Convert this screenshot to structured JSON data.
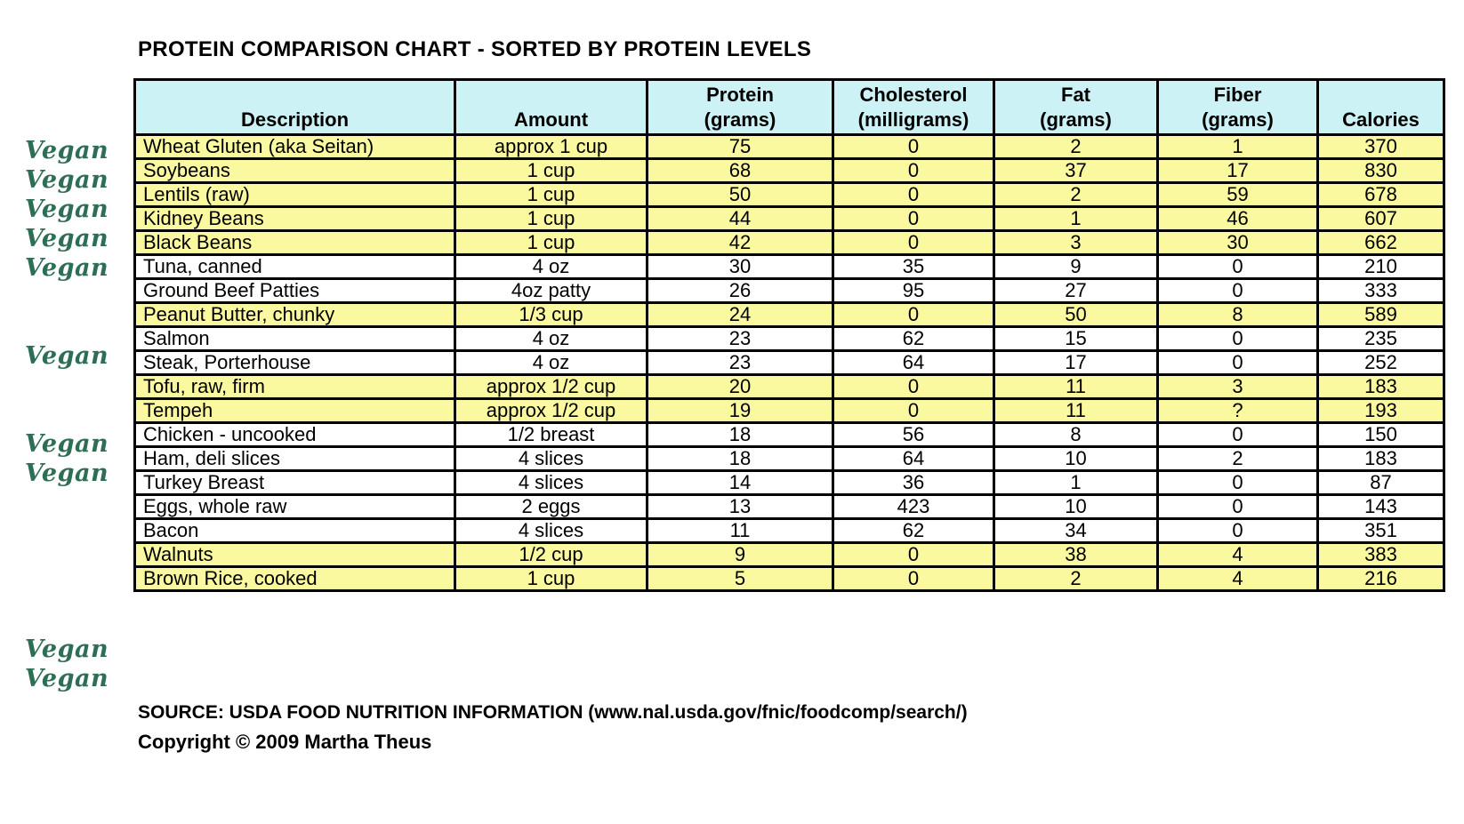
{
  "title": "PROTEIN COMPARISON CHART - SORTED BY PROTEIN LEVELS",
  "vegan_label": "Vegan",
  "colors": {
    "header_bg": "#cdf2f5",
    "vegan_row_bg": "#fbf99f",
    "vegan_label_green": "#2d6e54",
    "border": "#000000",
    "background": "#ffffff"
  },
  "header": {
    "description": {
      "line1": "",
      "line2": "Description"
    },
    "amount": {
      "line1": "",
      "line2": "Amount"
    },
    "protein": {
      "line1": "Protein",
      "line2": "(grams)"
    },
    "cholesterol": {
      "line1": "Cholesterol",
      "line2": "(milligrams)"
    },
    "fat": {
      "line1": "Fat",
      "line2": "(grams)"
    },
    "fiber": {
      "line1": "Fiber",
      "line2": "(grams)"
    },
    "calories": {
      "line1": "",
      "line2": "Calories"
    }
  },
  "footer": {
    "source": "SOURCE: USDA FOOD NUTRITION INFORMATION (www.nal.usda.gov/fnic/foodcomp/search/)",
    "copyright": "Copyright © 2009 Martha Theus"
  },
  "chart_data": {
    "type": "table",
    "title": "PROTEIN COMPARISON CHART - SORTED BY PROTEIN LEVELS",
    "columns": [
      "Description",
      "Amount",
      "Protein (grams)",
      "Cholesterol (milligrams)",
      "Fat (grams)",
      "Fiber (grams)",
      "Calories"
    ],
    "rows": [
      {
        "vegan": true,
        "description": "Wheat Gluten (aka Seitan)",
        "amount": "approx 1 cup",
        "protein": 75,
        "cholesterol": 0,
        "fat": 2,
        "fiber": 1,
        "calories": 370
      },
      {
        "vegan": true,
        "description": "Soybeans",
        "amount": "1 cup",
        "protein": 68,
        "cholesterol": 0,
        "fat": 37,
        "fiber": 17,
        "calories": 830
      },
      {
        "vegan": true,
        "description": "Lentils (raw)",
        "amount": "1 cup",
        "protein": 50,
        "cholesterol": 0,
        "fat": 2,
        "fiber": 59,
        "calories": 678
      },
      {
        "vegan": true,
        "description": "Kidney Beans",
        "amount": "1 cup",
        "protein": 44,
        "cholesterol": 0,
        "fat": 1,
        "fiber": 46,
        "calories": 607
      },
      {
        "vegan": true,
        "description": "Black Beans",
        "amount": "1 cup",
        "protein": 42,
        "cholesterol": 0,
        "fat": 3,
        "fiber": 30,
        "calories": 662
      },
      {
        "vegan": false,
        "description": "Tuna, canned",
        "amount": "4 oz",
        "protein": 30,
        "cholesterol": 35,
        "fat": 9,
        "fiber": 0,
        "calories": 210
      },
      {
        "vegan": false,
        "description": "Ground Beef Patties",
        "amount": "4oz patty",
        "protein": 26,
        "cholesterol": 95,
        "fat": 27,
        "fiber": 0,
        "calories": 333
      },
      {
        "vegan": true,
        "description": "Peanut Butter, chunky",
        "amount": "1/3 cup",
        "protein": 24,
        "cholesterol": 0,
        "fat": 50,
        "fiber": 8,
        "calories": 589
      },
      {
        "vegan": false,
        "description": "Salmon",
        "amount": "4 oz",
        "protein": 23,
        "cholesterol": 62,
        "fat": 15,
        "fiber": 0,
        "calories": 235
      },
      {
        "vegan": false,
        "description": "Steak, Porterhouse",
        "amount": "4 oz",
        "protein": 23,
        "cholesterol": 64,
        "fat": 17,
        "fiber": 0,
        "calories": 252
      },
      {
        "vegan": true,
        "description": "Tofu, raw, firm",
        "amount": "approx 1/2 cup",
        "protein": 20,
        "cholesterol": 0,
        "fat": 11,
        "fiber": 3,
        "calories": 183
      },
      {
        "vegan": true,
        "description": "Tempeh",
        "amount": "approx 1/2 cup",
        "protein": 19,
        "cholesterol": 0,
        "fat": 11,
        "fiber": "?",
        "calories": 193
      },
      {
        "vegan": false,
        "description": "Chicken - uncooked",
        "amount": "1/2 breast",
        "protein": 18,
        "cholesterol": 56,
        "fat": 8,
        "fiber": 0,
        "calories": 150
      },
      {
        "vegan": false,
        "description": "Ham, deli slices",
        "amount": "4 slices",
        "protein": 18,
        "cholesterol": 64,
        "fat": 10,
        "fiber": 2,
        "calories": 183
      },
      {
        "vegan": false,
        "description": "Turkey Breast",
        "amount": "4 slices",
        "protein": 14,
        "cholesterol": 36,
        "fat": 1,
        "fiber": 0,
        "calories": 87
      },
      {
        "vegan": false,
        "description": "Eggs, whole raw",
        "amount": "2 eggs",
        "protein": 13,
        "cholesterol": 423,
        "fat": 10,
        "fiber": 0,
        "calories": 143
      },
      {
        "vegan": false,
        "description": "Bacon",
        "amount": "4 slices",
        "protein": 11,
        "cholesterol": 62,
        "fat": 34,
        "fiber": 0,
        "calories": 351
      },
      {
        "vegan": true,
        "description": "Walnuts",
        "amount": "1/2 cup",
        "protein": 9,
        "cholesterol": 0,
        "fat": 38,
        "fiber": 4,
        "calories": 383
      },
      {
        "vegan": true,
        "description": "Brown Rice, cooked",
        "amount": "1 cup",
        "protein": 5,
        "cholesterol": 0,
        "fat": 2,
        "fiber": 4,
        "calories": 216
      }
    ]
  }
}
